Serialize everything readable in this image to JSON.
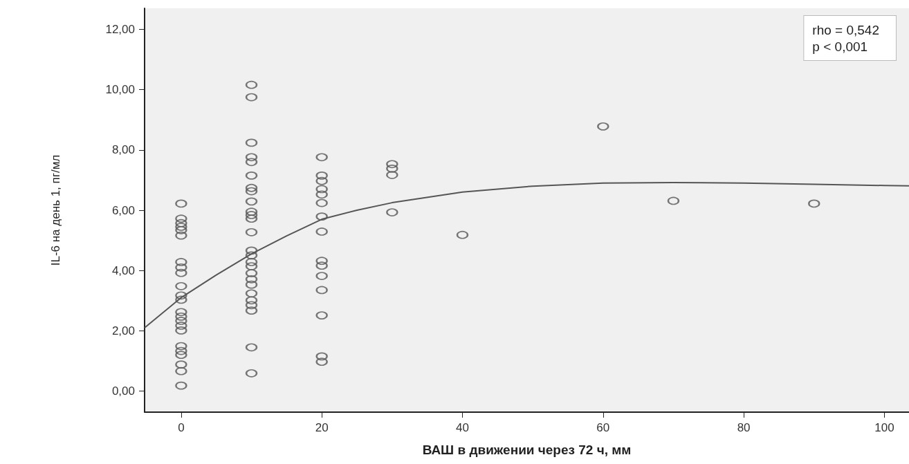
{
  "chart_data": {
    "type": "scatter",
    "xlabel": "ВАШ в движении через 72 ч, мм",
    "ylabel": "IL-6 на день 1, пг/мл",
    "annotations": [
      "rho = 0,542",
      "p < 0,001"
    ],
    "marker": "circle",
    "grid": false,
    "xlim": [
      -5.2,
      103.5
    ],
    "xticks": [
      0,
      20,
      40,
      60,
      80,
      100
    ],
    "ylim": [
      -0.7,
      12.7
    ],
    "yticks": [
      {
        "value": 0,
        "label": "0,00"
      },
      {
        "value": 2,
        "label": "2,00"
      },
      {
        "value": 4,
        "label": "4,00"
      },
      {
        "value": 6,
        "label": "6,00"
      },
      {
        "value": 8,
        "label": "8,00"
      },
      {
        "value": 10,
        "label": "10,00"
      },
      {
        "value": 12,
        "label": "12,00"
      }
    ],
    "series": [
      {
        "color": "#555555",
        "x": [
          0,
          0,
          0,
          0,
          0,
          0,
          0,
          0,
          0,
          0,
          0,
          0,
          0,
          0,
          0,
          0,
          0,
          0,
          0,
          0,
          0,
          0,
          0,
          10,
          10,
          10,
          10,
          10,
          10,
          10,
          10,
          10,
          10,
          10,
          10,
          10,
          10,
          10,
          10,
          10,
          10,
          10,
          10,
          10,
          10,
          10,
          10,
          10,
          10,
          20,
          20,
          20,
          20,
          20,
          20,
          20,
          20,
          20,
          20,
          20,
          20,
          20,
          20,
          20,
          30,
          30,
          30,
          30,
          40,
          60,
          70,
          90
        ],
        "values": [
          6.22,
          5.72,
          5.57,
          5.45,
          5.34,
          5.16,
          4.28,
          4.1,
          3.92,
          3.48,
          3.17,
          3.03,
          2.62,
          2.47,
          2.33,
          2.17,
          2.01,
          1.49,
          1.33,
          1.2,
          0.88,
          0.66,
          0.18,
          10.16,
          9.75,
          8.24,
          7.76,
          7.6,
          7.15,
          6.74,
          6.63,
          6.29,
          5.95,
          5.84,
          5.72,
          5.27,
          4.66,
          4.5,
          4.28,
          4.14,
          3.91,
          3.71,
          3.53,
          3.24,
          3.01,
          2.85,
          2.67,
          1.45,
          0.59,
          7.76,
          7.15,
          6.97,
          6.7,
          6.52,
          6.24,
          5.79,
          5.29,
          4.32,
          4.16,
          3.82,
          3.35,
          2.51,
          1.15,
          0.97,
          7.53,
          7.38,
          7.17,
          5.93,
          5.18,
          8.78,
          6.31,
          6.22
        ]
      },
      {
        "type": "line",
        "color": "#555555",
        "marker": "none",
        "x": [
          -5.2,
          0,
          5,
          10,
          15,
          20,
          25,
          30,
          40,
          50,
          60,
          70,
          80,
          90,
          100,
          103.5
        ],
        "values": [
          2.1,
          3.1,
          3.85,
          4.55,
          5.15,
          5.7,
          6.0,
          6.25,
          6.6,
          6.8,
          6.9,
          6.92,
          6.9,
          6.86,
          6.82,
          6.81
        ]
      }
    ]
  }
}
